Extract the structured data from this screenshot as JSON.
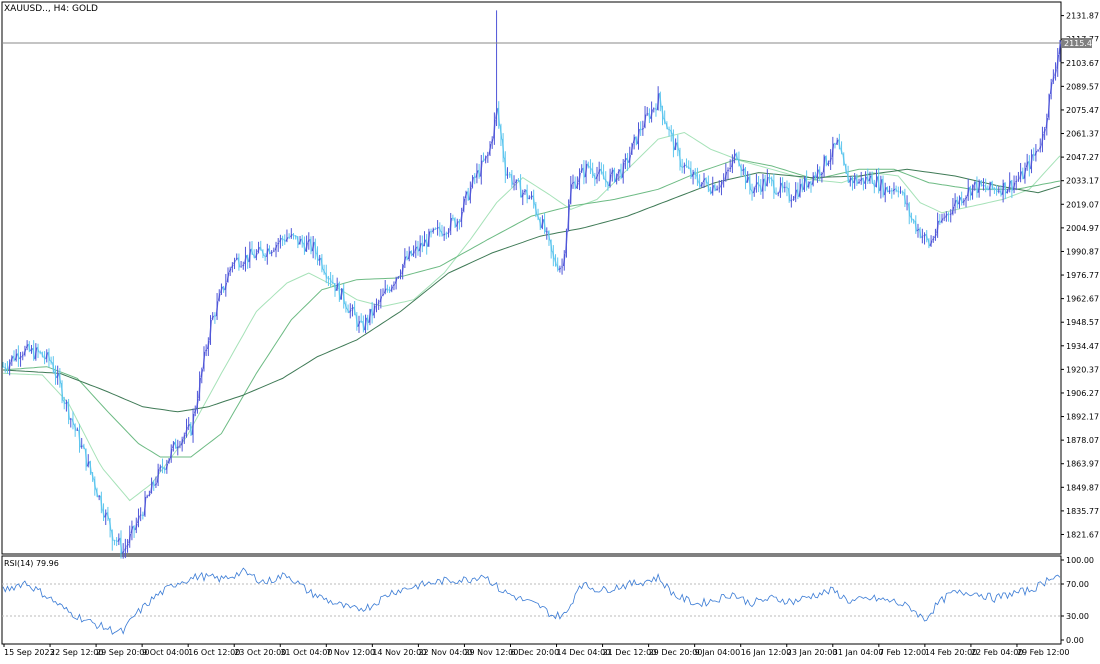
{
  "window": {
    "title": "XAUUSD.., H4:  GOLD",
    "current_price": "2115.48"
  },
  "chart_data": [
    {
      "type": "candlestick",
      "symbol": "XAUUSD..",
      "timeframe": "H4",
      "description": "GOLD",
      "ylim": [
        1810,
        2140
      ],
      "y_ticks": [
        "2131.87",
        "2117.77",
        "2103.67",
        "2089.57",
        "2075.47",
        "2061.37",
        "2047.27",
        "2033.17",
        "2019.07",
        "2004.97",
        "1990.87",
        "1976.77",
        "1962.67",
        "1948.57",
        "1934.47",
        "1920.37",
        "1906.27",
        "1892.17",
        "1878.07",
        "1863.97",
        "1849.87",
        "1835.77",
        "1821.67"
      ],
      "x_ticks": [
        "15 Sep 2023",
        "22 Sep 12:00",
        "29 Sep 20:00",
        "9 Oct 04:00",
        "16 Oct 12:00",
        "23 Oct 20:00",
        "31 Oct 04:00",
        "7 Nov 12:00",
        "14 Nov 20:00",
        "22 Nov 04:00",
        "29 Nov 12:00",
        "6 Dec 20:00",
        "14 Dec 04:00",
        "21 Dec 12:00",
        "29 Dec 20:00",
        "9 Jan 04:00",
        "16 Jan 12:00",
        "23 Jan 20:00",
        "31 Jan 04:00",
        "7 Feb 12:00",
        "14 Feb 20:00",
        "22 Feb 04:00",
        "29 Feb 12:00"
      ],
      "price_path": [
        [
          0,
          1922
        ],
        [
          8,
          1932
        ],
        [
          16,
          1930
        ],
        [
          22,
          1925
        ],
        [
          30,
          1895
        ],
        [
          37,
          1870
        ],
        [
          45,
          1840
        ],
        [
          50,
          1822
        ],
        [
          55,
          1812
        ],
        [
          60,
          1825
        ],
        [
          70,
          1855
        ],
        [
          80,
          1878
        ],
        [
          86,
          1885
        ],
        [
          95,
          1948
        ],
        [
          105,
          1985
        ],
        [
          118,
          1990
        ],
        [
          130,
          2000
        ],
        [
          142,
          1993
        ],
        [
          150,
          1975
        ],
        [
          158,
          1958
        ],
        [
          164,
          1945
        ],
        [
          172,
          1960
        ],
        [
          184,
          1985
        ],
        [
          196,
          2000
        ],
        [
          208,
          2010
        ],
        [
          216,
          2035
        ],
        [
          222,
          2048
        ],
        [
          226,
          2075
        ],
        [
          230,
          2040
        ],
        [
          235,
          2030
        ],
        [
          242,
          2022
        ],
        [
          248,
          2003
        ],
        [
          252,
          1985
        ],
        [
          256,
          1982
        ],
        [
          260,
          2030
        ],
        [
          268,
          2042
        ],
        [
          276,
          2033
        ],
        [
          284,
          2040
        ],
        [
          292,
          2065
        ],
        [
          300,
          2082
        ],
        [
          305,
          2062
        ],
        [
          310,
          2045
        ],
        [
          316,
          2035
        ],
        [
          324,
          2030
        ],
        [
          330,
          2033
        ],
        [
          336,
          2050
        ],
        [
          342,
          2028
        ],
        [
          350,
          2033
        ],
        [
          360,
          2024
        ],
        [
          366,
          2030
        ],
        [
          374,
          2040
        ],
        [
          382,
          2055
        ],
        [
          386,
          2035
        ],
        [
          392,
          2033
        ],
        [
          398,
          2035
        ],
        [
          404,
          2028
        ],
        [
          410,
          2030
        ],
        [
          416,
          2010
        ],
        [
          424,
          1995
        ],
        [
          430,
          2010
        ],
        [
          436,
          2020
        ],
        [
          444,
          2030
        ],
        [
          452,
          2028
        ],
        [
          460,
          2030
        ],
        [
          466,
          2035
        ],
        [
          472,
          2048
        ],
        [
          476,
          2060
        ],
        [
          480,
          2090
        ],
        [
          484,
          2117
        ]
      ],
      "spikes": [
        {
          "i": 226,
          "high": 2135
        },
        {
          "i": 256,
          "low": 1977
        },
        {
          "i": 50,
          "low": 1812
        }
      ],
      "moving_averages": [
        {
          "color": "#a6e2b8",
          "values": [
            [
              0,
              1918
            ],
            [
              18,
              1917
            ],
            [
              30,
              1900
            ],
            [
              45,
              1862
            ],
            [
              58,
              1842
            ],
            [
              68,
              1852
            ],
            [
              84,
              1880
            ],
            [
              100,
              1918
            ],
            [
              116,
              1955
            ],
            [
              130,
              1972
            ],
            [
              140,
              1978
            ],
            [
              152,
              1970
            ],
            [
              162,
              1962
            ],
            [
              174,
              1958
            ],
            [
              188,
              1962
            ],
            [
              202,
              1978
            ],
            [
              214,
              1998
            ],
            [
              226,
              2020
            ],
            [
              238,
              2035
            ],
            [
              250,
              2025
            ],
            [
              260,
              2016
            ],
            [
              272,
              2022
            ],
            [
              286,
              2040
            ],
            [
              300,
              2058
            ],
            [
              312,
              2062
            ],
            [
              324,
              2052
            ],
            [
              338,
              2045
            ],
            [
              352,
              2040
            ],
            [
              368,
              2034
            ],
            [
              384,
              2032
            ],
            [
              398,
              2038
            ],
            [
              410,
              2036
            ],
            [
              420,
              2020
            ],
            [
              430,
              2014
            ],
            [
              444,
              2018
            ],
            [
              458,
              2022
            ],
            [
              470,
              2028
            ],
            [
              484,
              2048
            ]
          ]
        },
        {
          "color": "#6dbb84",
          "values": [
            [
              0,
              1920
            ],
            [
              20,
              1922
            ],
            [
              34,
              1915
            ],
            [
              48,
              1895
            ],
            [
              62,
              1876
            ],
            [
              72,
              1868
            ],
            [
              86,
              1868
            ],
            [
              100,
              1882
            ],
            [
              116,
              1918
            ],
            [
              132,
              1950
            ],
            [
              146,
              1968
            ],
            [
              162,
              1974
            ],
            [
              180,
              1975
            ],
            [
              200,
              1982
            ],
            [
              222,
              1998
            ],
            [
              242,
              2012
            ],
            [
              260,
              2018
            ],
            [
              280,
              2022
            ],
            [
              300,
              2028
            ],
            [
              318,
              2038
            ],
            [
              336,
              2046
            ],
            [
              352,
              2042
            ],
            [
              372,
              2034
            ],
            [
              392,
              2040
            ],
            [
              408,
              2040
            ],
            [
              424,
              2032
            ],
            [
              444,
              2028
            ],
            [
              464,
              2028
            ],
            [
              484,
              2033
            ]
          ]
        },
        {
          "color": "#3f7a56",
          "values": [
            [
              0,
              1920
            ],
            [
              26,
              1918
            ],
            [
              46,
              1908
            ],
            [
              64,
              1898
            ],
            [
              80,
              1895
            ],
            [
              94,
              1898
            ],
            [
              110,
              1905
            ],
            [
              128,
              1915
            ],
            [
              144,
              1928
            ],
            [
              162,
              1938
            ],
            [
              182,
              1955
            ],
            [
              204,
              1978
            ],
            [
              224,
              1990
            ],
            [
              246,
              2000
            ],
            [
              266,
              2005
            ],
            [
              286,
              2012
            ],
            [
              306,
              2022
            ],
            [
              326,
              2032
            ],
            [
              346,
              2038
            ],
            [
              370,
              2035
            ],
            [
              392,
              2036
            ],
            [
              414,
              2040
            ],
            [
              436,
              2036
            ],
            [
              456,
              2030
            ],
            [
              474,
              2026
            ],
            [
              484,
              2030
            ]
          ]
        }
      ]
    },
    {
      "type": "line",
      "title": "RSI(14) 79.96",
      "ylim": [
        0,
        100
      ],
      "y_ticks": [
        "100.00",
        "70.00",
        "30.00",
        "0.00"
      ],
      "levels": [
        70,
        30
      ],
      "rsi_path": [
        [
          0,
          62
        ],
        [
          10,
          72
        ],
        [
          20,
          55
        ],
        [
          30,
          35
        ],
        [
          40,
          22
        ],
        [
          50,
          12
        ],
        [
          55,
          10
        ],
        [
          60,
          30
        ],
        [
          70,
          55
        ],
        [
          80,
          72
        ],
        [
          90,
          80
        ],
        [
          100,
          76
        ],
        [
          110,
          85
        ],
        [
          120,
          72
        ],
        [
          130,
          82
        ],
        [
          140,
          60
        ],
        [
          150,
          48
        ],
        [
          160,
          38
        ],
        [
          168,
          42
        ],
        [
          178,
          60
        ],
        [
          190,
          68
        ],
        [
          202,
          74
        ],
        [
          214,
          76
        ],
        [
          220,
          82
        ],
        [
          228,
          62
        ],
        [
          238,
          50
        ],
        [
          246,
          42
        ],
        [
          252,
          30
        ],
        [
          258,
          32
        ],
        [
          264,
          70
        ],
        [
          274,
          62
        ],
        [
          284,
          68
        ],
        [
          292,
          72
        ],
        [
          300,
          78
        ],
        [
          308,
          55
        ],
        [
          318,
          45
        ],
        [
          326,
          50
        ],
        [
          334,
          58
        ],
        [
          342,
          46
        ],
        [
          352,
          52
        ],
        [
          362,
          48
        ],
        [
          370,
          55
        ],
        [
          380,
          62
        ],
        [
          388,
          48
        ],
        [
          398,
          52
        ],
        [
          408,
          48
        ],
        [
          416,
          40
        ],
        [
          422,
          25
        ],
        [
          428,
          45
        ],
        [
          434,
          58
        ],
        [
          444,
          60
        ],
        [
          454,
          52
        ],
        [
          462,
          58
        ],
        [
          470,
          62
        ],
        [
          476,
          70
        ],
        [
          480,
          80
        ],
        [
          484,
          79.96
        ]
      ]
    }
  ]
}
